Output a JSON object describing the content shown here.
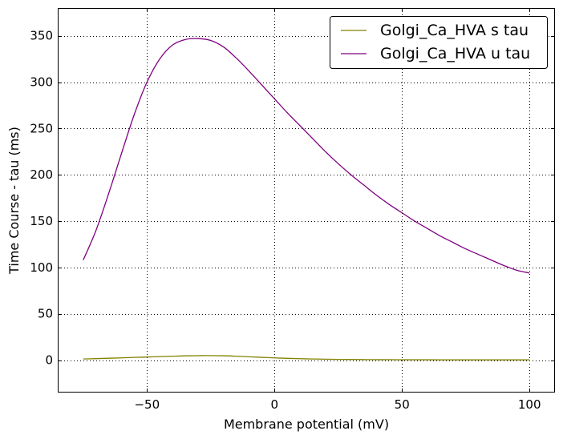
{
  "chart_data": {
    "type": "line",
    "title": "",
    "xlabel": "Membrane potential (mV)",
    "ylabel": "Time Course - tau (ms)",
    "xlim": [
      -85,
      110
    ],
    "ylim": [
      -35,
      380
    ],
    "xticks": [
      -50,
      0,
      50,
      100
    ],
    "yticks": [
      0,
      50,
      100,
      150,
      200,
      250,
      300,
      350
    ],
    "xtick_labels": [
      "−50",
      "0",
      "50",
      "100"
    ],
    "ytick_labels": [
      "0",
      "50",
      "100",
      "150",
      "200",
      "250",
      "300",
      "350"
    ],
    "grid": true,
    "legend_position": "top-right",
    "series": [
      {
        "name": "Golgi_Ca_HVA s tau",
        "color": "#808000",
        "x": [
          -75,
          -70,
          -65,
          -60,
          -55,
          -50,
          -45,
          -40,
          -35,
          -30,
          -25,
          -20,
          -15,
          -10,
          -5,
          0,
          5,
          10,
          15,
          20,
          25,
          30,
          35,
          40,
          45,
          50,
          55,
          60,
          65,
          70,
          75,
          80,
          85,
          90,
          95,
          100
        ],
        "y": [
          1.2,
          1.6,
          2.0,
          2.4,
          2.9,
          3.3,
          3.8,
          4.2,
          4.6,
          4.8,
          4.9,
          4.7,
          4.2,
          3.6,
          3.0,
          2.4,
          1.9,
          1.5,
          1.2,
          1.0,
          0.8,
          0.7,
          0.6,
          0.5,
          0.5,
          0.4,
          0.4,
          0.4,
          0.3,
          0.3,
          0.3,
          0.3,
          0.3,
          0.3,
          0.3,
          0.3
        ]
      },
      {
        "name": "Golgi_Ca_HVA u tau",
        "color": "#800080",
        "x": [
          -75,
          -70,
          -65,
          -60,
          -55,
          -50,
          -45,
          -40,
          -35,
          -30,
          -25,
          -20,
          -15,
          -10,
          -5,
          0,
          5,
          10,
          15,
          20,
          25,
          30,
          35,
          40,
          45,
          50,
          55,
          60,
          65,
          70,
          75,
          80,
          85,
          90,
          95,
          100
        ],
        "y": [
          108,
          140,
          180,
          223,
          265,
          300,
          325,
          340,
          346,
          347,
          345,
          338,
          326,
          312,
          297,
          282,
          267,
          253,
          239,
          225,
          212,
          200,
          189,
          178,
          168,
          159,
          150,
          142,
          134,
          127,
          120,
          114,
          108,
          102,
          97,
          94
        ]
      }
    ]
  }
}
